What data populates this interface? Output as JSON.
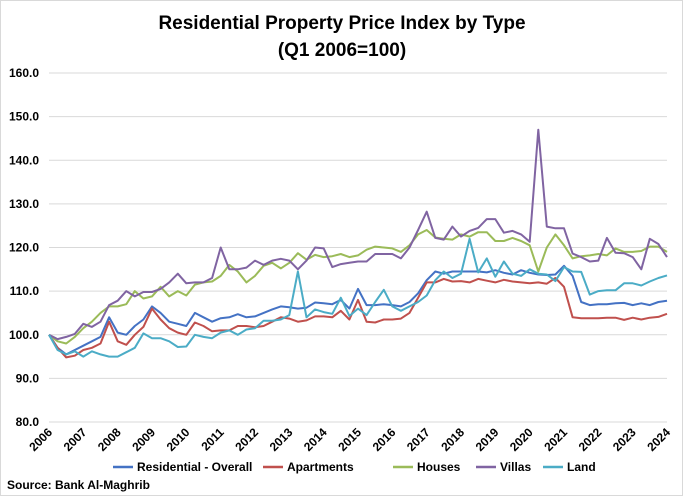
{
  "chart_data": {
    "type": "line",
    "title": "Residential Property Price Index by Type",
    "subtitle": "(Q1 2006=100)",
    "xlabel": "",
    "ylabel": "",
    "ylim": [
      80,
      160
    ],
    "y_ticks": [
      "80.0",
      "90.0",
      "100.0",
      "110.0",
      "120.0",
      "130.0",
      "140.0",
      "150.0",
      "160.0"
    ],
    "x_ticks": [
      "2006",
      "2007",
      "2008",
      "2009",
      "2010",
      "2011",
      "2012",
      "2013",
      "2014",
      "2015",
      "2016",
      "2017",
      "2018",
      "2019",
      "2020",
      "2021",
      "2022",
      "2023",
      "2024"
    ],
    "x_start": "2006 Q1",
    "x_frequency": "quarterly",
    "grid": "horizontal",
    "legend_position": "bottom",
    "source": "Source: Bank Al-Maghrib",
    "series": [
      {
        "name": "Residential - Overall",
        "color": "#4472C4",
        "values": [
          100,
          97,
          95.5,
          96.5,
          97.5,
          98.5,
          99.5,
          104,
          100.5,
          100,
          102,
          103.5,
          106.5,
          105,
          103,
          102.5,
          102,
          105,
          104,
          103,
          103.8,
          104,
          104.7,
          104,
          104.2,
          105,
          105.8,
          106.5,
          106.3,
          106,
          106.2,
          107.4,
          107.2,
          107,
          108,
          106,
          110.5,
          106.8,
          106.8,
          107,
          106.8,
          106.5,
          107.5,
          109.5,
          112.5,
          114.5,
          114,
          114.5,
          114.5,
          114.5,
          114.5,
          114.3,
          114.8,
          114.2,
          113.8,
          114.8,
          114.2,
          113.8,
          113.7,
          113.8,
          115.8,
          113.5,
          107.5,
          106.8,
          107,
          107,
          107.2,
          107.3,
          106.8,
          107.2,
          106.8,
          107.5,
          107.8
        ]
      },
      {
        "name": "Apartments",
        "color": "#C0504D",
        "values": [
          100,
          97,
          94.8,
          95.2,
          96.5,
          97,
          98,
          103,
          98.5,
          97.7,
          100,
          101.8,
          106,
          103.5,
          101.5,
          100.5,
          100,
          102.8,
          102,
          100.8,
          101,
          101,
          102,
          102,
          101.7,
          102,
          103,
          104,
          103.7,
          103,
          103.3,
          104.2,
          104.2,
          104,
          105.5,
          103.5,
          108,
          103,
          102.8,
          103.5,
          103.5,
          103.7,
          105,
          108.5,
          112,
          112,
          112.8,
          112.2,
          112.3,
          112,
          112.8,
          112.4,
          112,
          112.6,
          112.2,
          112,
          111.8,
          112,
          111.7,
          113,
          111,
          104,
          103.8,
          103.8,
          103.8,
          103.9,
          103.9,
          103.4,
          103.9,
          103.5,
          103.9,
          104.1,
          104.8
        ]
      },
      {
        "name": "Houses",
        "color": "#9BBB59",
        "values": [
          100,
          98.5,
          98,
          99.5,
          101.5,
          103,
          105,
          106.5,
          106.5,
          107,
          110,
          108.3,
          108.8,
          111,
          108.8,
          110,
          109,
          111.5,
          112,
          112.2,
          113.5,
          116,
          114.5,
          112,
          113.5,
          115.8,
          116.5,
          115.2,
          116.5,
          118.7,
          117.2,
          118.3,
          117.8,
          118,
          118.5,
          117.8,
          118.2,
          119.5,
          120.2,
          120,
          119.8,
          119,
          120.5,
          123,
          124,
          122.3,
          122,
          121.8,
          123,
          122.5,
          123.5,
          123.5,
          121.5,
          121.5,
          122.2,
          121.5,
          120.5,
          114.5,
          120,
          123,
          120.5,
          117.5,
          118,
          118.2,
          118.5,
          118.2,
          119.8,
          119,
          119,
          119.2,
          120.2,
          120.2,
          119
        ]
      },
      {
        "name": "Villas",
        "color": "#8064A2",
        "values": [
          100,
          99,
          99.5,
          100.2,
          102.5,
          101.8,
          103,
          106.8,
          107.8,
          110,
          108.8,
          109.8,
          109.8,
          110.5,
          112,
          114,
          111.8,
          112,
          112,
          113,
          120,
          115,
          115,
          115.4,
          117,
          116,
          117,
          117.4,
          117,
          115,
          117,
          120,
          119.8,
          115.5,
          116.2,
          116.5,
          116.8,
          116.8,
          118.5,
          118.5,
          118.5,
          117.5,
          120,
          124,
          128.2,
          122.2,
          121.8,
          124.8,
          122.5,
          123.8,
          124.5,
          126.5,
          126.5,
          123.4,
          123.8,
          123,
          121.3,
          147,
          124.8,
          124.4,
          124.4,
          118.6,
          117.8,
          116.8,
          117,
          122.2,
          118.8,
          118.7,
          117.8,
          115,
          122,
          120.8,
          117.8
        ]
      },
      {
        "name": "Land",
        "color": "#4BACC6",
        "values": [
          100,
          96.5,
          95.5,
          96.2,
          95,
          96.2,
          95.5,
          95,
          95,
          96,
          97,
          100.3,
          99.2,
          99.2,
          98.5,
          97.2,
          97.3,
          100,
          99.5,
          99.2,
          100.5,
          101,
          100,
          101.2,
          101.5,
          103.2,
          103.2,
          103.5,
          104.5,
          114.5,
          104,
          105.8,
          105.2,
          104.8,
          108.5,
          104.3,
          106,
          104.5,
          107.5,
          110.3,
          106.5,
          105.5,
          106.5,
          107.5,
          109,
          112.5,
          114.5,
          113,
          114,
          122,
          114.3,
          117.5,
          113.3,
          116.8,
          114,
          113.5,
          115,
          114,
          113.8,
          112.3,
          115.5,
          114.5,
          114.4,
          109.2,
          110,
          110.2,
          110.2,
          111.8,
          111.8,
          111.3,
          112.2,
          113,
          113.6
        ]
      }
    ]
  }
}
